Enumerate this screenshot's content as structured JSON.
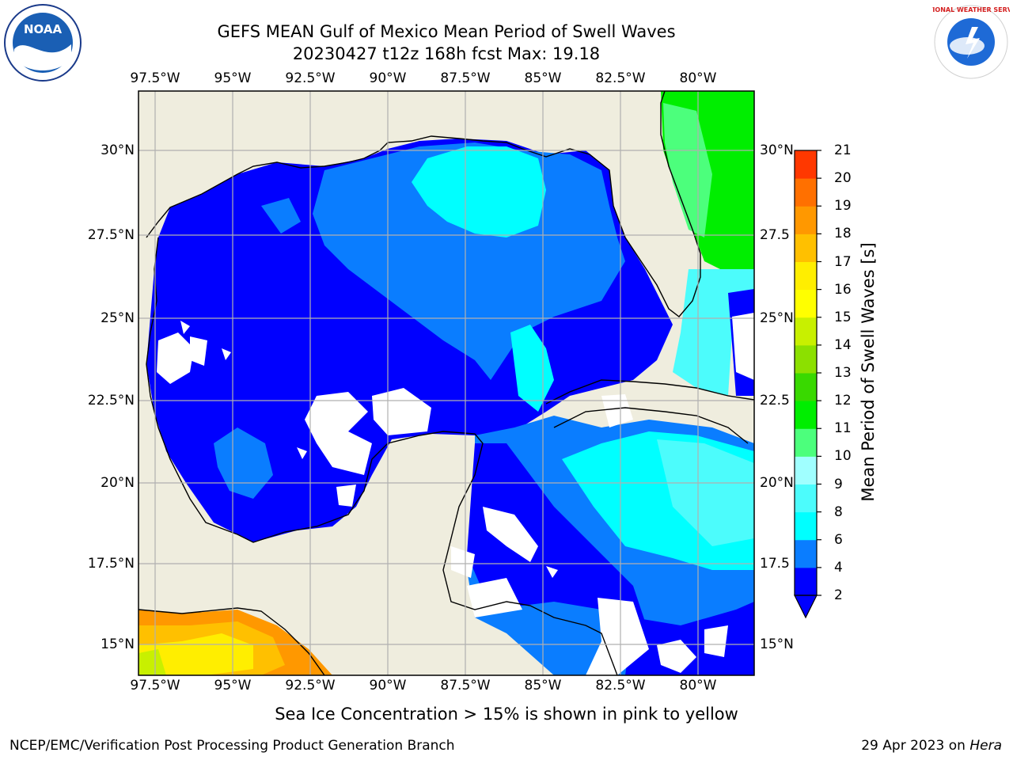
{
  "title": {
    "line1": "GEFS MEAN Gulf of Mexico Mean Period of Swell Waves",
    "line2": "20230427 t12z 168h fcst   Max: 19.18"
  },
  "map": {
    "lon_labels": [
      "97.5°W",
      "95°W",
      "92.5°W",
      "90°W",
      "87.5°W",
      "85°W",
      "82.5°W",
      "80°W"
    ],
    "lat_labels": [
      "30°N",
      "27.5°N",
      "25°N",
      "22.5°N",
      "20°N",
      "17.5°N",
      "15°N"
    ],
    "right_lat_labels": [
      "30°N",
      "27.5",
      "25°N",
      "22.5",
      "20°N",
      "17.5",
      "15°N"
    ],
    "land_color": "#efedde",
    "ocean_missing_color": "#ffffff",
    "grid_color": "#b0b0b0"
  },
  "colorbar": {
    "label": "Mean Period of Swell Waves [s]",
    "ticks": [
      "2",
      "4",
      "6",
      "8",
      "9",
      "10",
      "11",
      "12",
      "13",
      "14",
      "15",
      "16",
      "17",
      "18",
      "19",
      "20",
      "21"
    ],
    "colors": [
      "#0000ff",
      "#0a7dff",
      "#00ffff",
      "#4cfcfc",
      "#a0ffff",
      "#4cff7c",
      "#00ee00",
      "#39d900",
      "#8ce000",
      "#c8f000",
      "#ffff00",
      "#ffee00",
      "#ffc000",
      "#ff9800",
      "#ff7000",
      "#ff3800",
      "#ff0000"
    ],
    "under_color": "#0000ff"
  },
  "note": "Sea Ice Concentration > 15% is shown in pink to yellow",
  "footer": {
    "left": "NCEP/EMC/Verification Post Processing Product Generation Branch",
    "right_date": "29 Apr 2023 on ",
    "right_host": "Hera"
  },
  "logos": {
    "noaa": "NOAA",
    "nws": "NATIONAL WEATHER SERVICE"
  }
}
